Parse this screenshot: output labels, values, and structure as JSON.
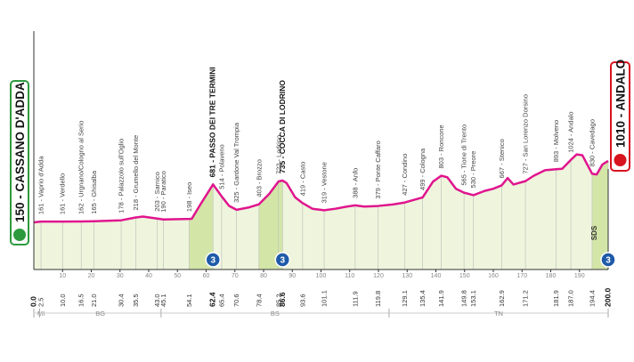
{
  "chart_data": {
    "type": "area",
    "xlim": [
      0,
      200
    ],
    "xticks": [
      10,
      20,
      30,
      40,
      50,
      60,
      70,
      80,
      90,
      100,
      110,
      120,
      130,
      140,
      150,
      160,
      170,
      180,
      190
    ],
    "x": [
      0,
      2.5,
      10,
      16.5,
      21,
      30.4,
      35.5,
      38,
      43,
      45.1,
      54.1,
      55,
      58,
      62.4,
      65.4,
      68,
      70.6,
      75,
      78.4,
      82,
      85.2,
      86.6,
      88,
      91,
      93.6,
      97,
      101.1,
      105,
      109,
      111.9,
      115,
      119.8,
      125,
      129.1,
      135.4,
      139,
      141.9,
      144,
      147,
      149.8,
      153.1,
      157,
      160,
      162.9,
      165,
      167,
      171.2,
      174,
      178,
      181.9,
      184,
      187,
      189,
      191,
      194.4,
      196,
      198,
      200
    ],
    "values": [
      150,
      161,
      161,
      162,
      165,
      178,
      218,
      230,
      203,
      190,
      198,
      200,
      400,
      681,
      514,
      380,
      325,
      360,
      403,
      550,
      722,
      735,
      700,
      500,
      419,
      340,
      319,
      340,
      370,
      388,
      370,
      379,
      400,
      427,
      499,
      720,
      803,
      780,
      620,
      565,
      530,
      590,
      620,
      667,
      770,
      680,
      727,
      800,
      880,
      893,
      900,
      1024,
      1100,
      1090,
      830,
      820,
      960,
      1010
    ],
    "color": "#e0158e",
    "start": {
      "label": "150 - CASSANO D'ADDA",
      "color": "#2e9a3e"
    },
    "finish": {
      "label": "1010 - ANDALO",
      "color": "#d7141e"
    },
    "waypoints": [
      {
        "km": 0,
        "km_label": "0.0",
        "alt": 150
      },
      {
        "km": 2.5,
        "alt": 161,
        "label": "161 - Vaprio d'Adda"
      },
      {
        "km": 10,
        "km_label": "10.0",
        "alt": 161,
        "label": "161 - Verdello"
      },
      {
        "km": 16.5,
        "alt": 162,
        "label": "162 - Urgnano/Cologno al Serio"
      },
      {
        "km": 21,
        "km_label": "21.0",
        "alt": 165,
        "label": "165 - Ghisalba"
      },
      {
        "km": 30.4,
        "alt": 178,
        "label": "178 - Palazzolo sull'Oglio"
      },
      {
        "km": 35.5,
        "alt": 218,
        "label": "218 - Grumello del Monte"
      },
      {
        "km": 43,
        "km_label": "43.0",
        "alt": 203,
        "label": "203 - Sarnico"
      },
      {
        "km": 45.1,
        "alt": 190,
        "label": "190 - Paratico"
      },
      {
        "km": 54.1,
        "alt": 198,
        "label": "198 - Iseo"
      },
      {
        "km": 62.4,
        "alt": 681,
        "label": "681 - PASSO DEI TRE TERMINI",
        "bold": true
      },
      {
        "km": 65.4,
        "alt": 514,
        "label": "514 - Polaveno"
      },
      {
        "km": 70.6,
        "alt": 325,
        "label": "325 - Gardone Val Trompia"
      },
      {
        "km": 78.4,
        "alt": 403,
        "label": "403 - Brozzo"
      },
      {
        "km": 85.2,
        "alt": 722,
        "label": "722 - Lodrino"
      },
      {
        "km": 86.6,
        "alt": 735,
        "label": "735 - COCCA DI LODRINO",
        "bold": true
      },
      {
        "km": 93.6,
        "alt": 419,
        "label": "419 - Casto"
      },
      {
        "km": 101.1,
        "alt": 319,
        "label": "319 - Vestone"
      },
      {
        "km": 111.9,
        "alt": 388,
        "label": "388 - Anfo"
      },
      {
        "km": 119.8,
        "alt": 379,
        "label": "379 - Ponte Caffaro"
      },
      {
        "km": 129.1,
        "alt": 427,
        "label": "427 - Condino"
      },
      {
        "km": 135.4,
        "alt": 499,
        "label": "499 - Cologna"
      },
      {
        "km": 141.9,
        "alt": 803,
        "label": "803 - Roncone"
      },
      {
        "km": 149.8,
        "alt": 565,
        "label": "565 - Tione di Trento"
      },
      {
        "km": 153.1,
        "alt": 530,
        "label": "530 - Preore"
      },
      {
        "km": 162.9,
        "alt": 667,
        "label": "667 - Stenico"
      },
      {
        "km": 171.2,
        "alt": 727,
        "label": "727 - San Lorenzo Dorsino"
      },
      {
        "km": 181.9,
        "alt": 893,
        "label": "893 - Molveno"
      },
      {
        "km": 187,
        "km_label": "187.0",
        "alt": 1024,
        "label": "1024 - Andalo"
      },
      {
        "km": 194.4,
        "alt": 830,
        "label": "830 - Cavedago"
      },
      {
        "km": 200,
        "km_label": "200.0",
        "alt": 1010
      }
    ],
    "climbs": [
      {
        "start": 54.1,
        "km": 62.4,
        "category": 3
      },
      {
        "start": 78.4,
        "km": 86.6,
        "category": 3
      },
      {
        "start": 194.4,
        "km": 200,
        "category": 3
      }
    ],
    "annotations": [
      {
        "km": 196,
        "text": "SDS"
      }
    ],
    "regions": [
      {
        "name": "MI",
        "start": 0,
        "end": 2
      },
      {
        "name": "BG",
        "start": 2,
        "end": 44.3
      },
      {
        "name": "BS",
        "start": 44.3,
        "end": 123.7
      },
      {
        "name": "TN",
        "start": 123.7,
        "end": 200
      }
    ]
  }
}
